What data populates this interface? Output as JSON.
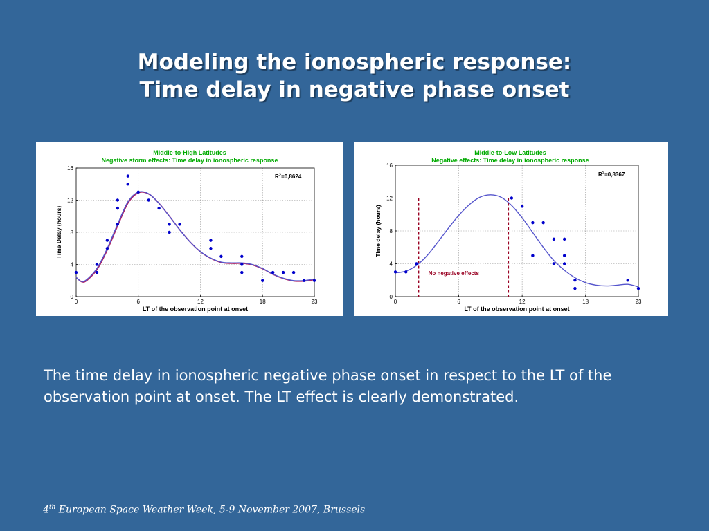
{
  "slide": {
    "title_line1": "Modeling the ionospheric response:",
    "title_line2": "Time delay in negative phase onset",
    "body": "The time delay in ionospheric negative phase onset in respect to the LT of the observation point at onset. The LT effect is clearly demonstrated.",
    "footer_num": "4",
    "footer_sup": "th",
    "footer_rest": " European Space Weather Week, 5-9 November 2007, Brussels"
  },
  "colors": {
    "background": "#336699",
    "title_green": "#00aa00",
    "points": "#0000cc",
    "fit_curve": "#5555cc",
    "fit_curve_alt": "#aa2266",
    "dashed_line": "#990022"
  },
  "chart_data": [
    {
      "type": "scatter",
      "title": "Middle-to-High Latitudes",
      "subtitle": "Negative storm effects: Time delay in ionospheric response",
      "xlabel": "LT of the observation point at onset",
      "ylabel": "Time Delay (hours)",
      "xlim": [
        0,
        23
      ],
      "ylim": [
        0,
        16
      ],
      "xticks": [
        0,
        6,
        12,
        18,
        23
      ],
      "yticks": [
        0,
        4,
        8,
        12,
        16
      ],
      "grid": true,
      "r2_label": "R",
      "r2_value": "=0,8624",
      "points": [
        [
          0,
          3
        ],
        [
          2,
          3
        ],
        [
          2,
          4
        ],
        [
          3,
          6
        ],
        [
          3,
          7
        ],
        [
          4,
          9
        ],
        [
          4,
          11
        ],
        [
          4,
          12
        ],
        [
          5,
          14
        ],
        [
          5,
          15
        ],
        [
          6,
          13
        ],
        [
          7,
          12
        ],
        [
          8,
          11
        ],
        [
          9,
          8
        ],
        [
          9,
          9
        ],
        [
          10,
          9
        ],
        [
          13,
          6
        ],
        [
          13,
          7
        ],
        [
          14,
          5
        ],
        [
          16,
          3
        ],
        [
          16,
          4
        ],
        [
          16,
          5
        ],
        [
          18,
          2
        ],
        [
          19,
          3
        ],
        [
          20,
          3
        ],
        [
          21,
          3
        ],
        [
          22,
          2
        ],
        [
          23,
          2
        ]
      ],
      "fit": [
        [
          0,
          2.4
        ],
        [
          0.5,
          1.9
        ],
        [
          1,
          2.1
        ],
        [
          2,
          3.5
        ],
        [
          3,
          6.0
        ],
        [
          4,
          9.0
        ],
        [
          5,
          11.8
        ],
        [
          6,
          13.0
        ],
        [
          7,
          12.8
        ],
        [
          8,
          11.6
        ],
        [
          9,
          10.0
        ],
        [
          10,
          8.3
        ],
        [
          11,
          6.8
        ],
        [
          12,
          5.6
        ],
        [
          13,
          4.8
        ],
        [
          14,
          4.3
        ],
        [
          15,
          4.2
        ],
        [
          16,
          4.2
        ],
        [
          17,
          4.0
        ],
        [
          18,
          3.5
        ],
        [
          19,
          2.8
        ],
        [
          20,
          2.3
        ],
        [
          21,
          2.0
        ],
        [
          22,
          2.0
        ],
        [
          23,
          2.2
        ]
      ]
    },
    {
      "type": "scatter",
      "title": "Middle-to-Low Latitudes",
      "subtitle": "Negative effects: Time delay in ionospheric response",
      "xlabel": "LT of the observation point at onset",
      "ylabel": "Time delay (hours)",
      "xlim": [
        0,
        23
      ],
      "ylim": [
        0,
        16
      ],
      "xticks": [
        0,
        6,
        12,
        18,
        23
      ],
      "yticks": [
        0,
        4,
        8,
        12,
        16
      ],
      "grid": true,
      "r2_label": "R",
      "r2_value": "=0,8367",
      "annotation": "No negative effects",
      "vlines": [
        2.2,
        10.7
      ],
      "points": [
        [
          0,
          3
        ],
        [
          1,
          3
        ],
        [
          2,
          4
        ],
        [
          11,
          12
        ],
        [
          12,
          11
        ],
        [
          13,
          9
        ],
        [
          13,
          5
        ],
        [
          14,
          9
        ],
        [
          15,
          7
        ],
        [
          15,
          4
        ],
        [
          16,
          7
        ],
        [
          16,
          5
        ],
        [
          16,
          4
        ],
        [
          17,
          2
        ],
        [
          17,
          1
        ],
        [
          22,
          2
        ],
        [
          23,
          1
        ]
      ],
      "fit": [
        [
          0,
          2.9
        ],
        [
          1,
          3.1
        ],
        [
          2,
          3.8
        ],
        [
          3,
          5.0
        ],
        [
          4,
          6.6
        ],
        [
          5,
          8.3
        ],
        [
          6,
          9.9
        ],
        [
          7,
          11.2
        ],
        [
          8,
          12.1
        ],
        [
          9,
          12.4
        ],
        [
          10,
          12.1
        ],
        [
          11,
          11.1
        ],
        [
          12,
          9.6
        ],
        [
          13,
          7.8
        ],
        [
          14,
          6.0
        ],
        [
          15,
          4.4
        ],
        [
          16,
          3.2
        ],
        [
          17,
          2.3
        ],
        [
          18,
          1.7
        ],
        [
          19,
          1.4
        ],
        [
          20,
          1.3
        ],
        [
          21,
          1.4
        ],
        [
          22,
          1.5
        ],
        [
          23,
          1.2
        ]
      ]
    }
  ]
}
